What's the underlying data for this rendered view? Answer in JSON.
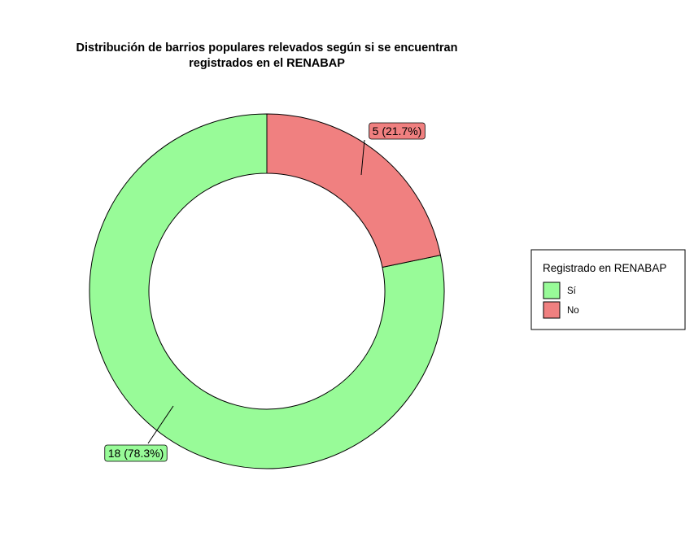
{
  "chart_data": {
    "type": "pie",
    "subtype": "donut",
    "title_lines": [
      "Distribución de barrios populares relevados según si se encuentran",
      "registrados en el RENABAP"
    ],
    "legend": {
      "title": "Registrado en RENABAP",
      "placement": "right"
    },
    "slices": [
      {
        "name": "Sí",
        "value": 18,
        "percent": 78.3,
        "label": "18 (78.3%)",
        "color": "#98fb98"
      },
      {
        "name": "No",
        "value": 5,
        "percent": 21.7,
        "label": "5 (21.7%)",
        "color": "#f08080"
      }
    ],
    "start": "top",
    "direction": "counterclockwise-for-first-slice"
  }
}
